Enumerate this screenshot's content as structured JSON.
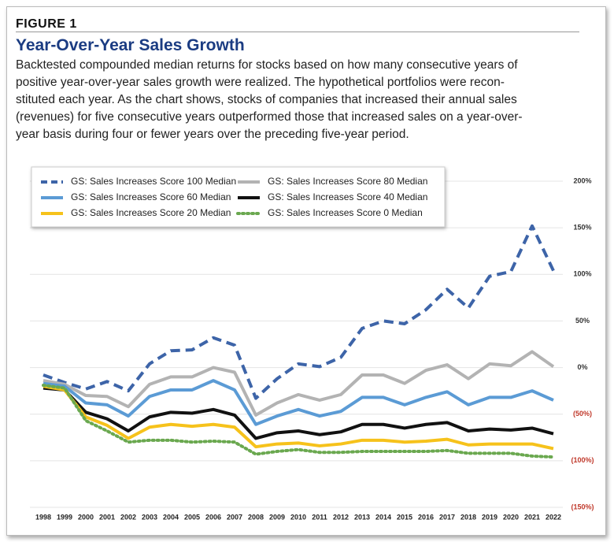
{
  "figure_label": "FIGURE 1",
  "chart_data": {
    "type": "line",
    "title": "Year-Over-Year Sales Growth",
    "description": [
      "Backtested compounded median returns for stocks based on how many consecutive years of",
      "positive year-over-year sales growth were realized. The hypothetical portfolios were recon-",
      "stituted each year. As the chart shows, stocks of companies that increased their annual sales",
      "(revenues) for five consecutive years outperformed those that increased sales on a year-over-",
      "year basis during four or fewer years over the preceding five-year period."
    ],
    "x": [
      1998,
      1999,
      2000,
      2001,
      2002,
      2003,
      2004,
      2005,
      2006,
      2007,
      2008,
      2009,
      2010,
      2011,
      2012,
      2013,
      2014,
      2015,
      2016,
      2017,
      2018,
      2019,
      2020,
      2021,
      2022
    ],
    "xlim": [
      1998,
      2022
    ],
    "xticks": [
      1998,
      1999,
      2000,
      2001,
      2002,
      2003,
      2004,
      2005,
      2006,
      2007,
      2008,
      2009,
      2010,
      2011,
      2012,
      2013,
      2014,
      2015,
      2016,
      2017,
      2018,
      2019,
      2020,
      2021,
      2022
    ],
    "ylim": [
      -150,
      200
    ],
    "yticks": [
      {
        "value": -150,
        "label": "(150%)"
      },
      {
        "value": -100,
        "label": "(100%)"
      },
      {
        "value": -50,
        "label": "(50%)"
      },
      {
        "value": 0,
        "label": "0%"
      },
      {
        "value": 50,
        "label": "50%"
      },
      {
        "value": 100,
        "label": "100%"
      },
      {
        "value": 150,
        "label": "150%"
      },
      {
        "value": 200,
        "label": "200%"
      }
    ],
    "negative_tick_color": "#c0392b",
    "grid": true,
    "legend": "top-left",
    "series": [
      {
        "name": "GS: Sales Increases Score 100 Median",
        "color": "#3d64a8",
        "style": "dashed",
        "values": [
          -8,
          -16,
          -23,
          -15,
          -25,
          4,
          18,
          19,
          32,
          24,
          -33,
          -12,
          4,
          1,
          11,
          42,
          50,
          47,
          62,
          84,
          64,
          98,
          103,
          152,
          104
        ]
      },
      {
        "name": "GS: Sales Increases Score 80 Median",
        "color": "#b3b3b3",
        "style": "solid",
        "values": [
          -14,
          -18,
          -30,
          -31,
          -42,
          -18,
          -10,
          -10,
          0,
          -5,
          -51,
          -38,
          -29,
          -35,
          -29,
          -8,
          -8,
          -17,
          -3,
          3,
          -12,
          4,
          2,
          17,
          1
        ]
      },
      {
        "name": "GS: Sales Increases Score 60 Median",
        "color": "#5b9bd5",
        "style": "solid",
        "values": [
          -17,
          -20,
          -38,
          -40,
          -52,
          -31,
          -24,
          -24,
          -14,
          -24,
          -61,
          -52,
          -45,
          -52,
          -47,
          -32,
          -32,
          -40,
          -32,
          -26,
          -40,
          -32,
          -32,
          -25,
          -35
        ]
      },
      {
        "name": "GS: Sales Increases Score 40 Median",
        "color": "#111111",
        "style": "solid",
        "values": [
          -22,
          -24,
          -48,
          -55,
          -68,
          -53,
          -48,
          -49,
          -45,
          -51,
          -76,
          -70,
          -68,
          -72,
          -69,
          -61,
          -61,
          -65,
          -61,
          -59,
          -68,
          -66,
          -67,
          -65,
          -71
        ]
      },
      {
        "name": "GS: Sales Increases Score 20 Median",
        "color": "#f6c21b",
        "style": "solid",
        "values": [
          -20,
          -24,
          -53,
          -62,
          -76,
          -64,
          -61,
          -63,
          -61,
          -64,
          -85,
          -82,
          -81,
          -84,
          -82,
          -78,
          -78,
          -80,
          -79,
          -77,
          -83,
          -82,
          -82,
          -82,
          -87
        ]
      },
      {
        "name": "GS: Sales Increases Score 0 Median",
        "color": "#6aa84f",
        "style": "dotted",
        "values": [
          -19,
          -22,
          -57,
          -68,
          -80,
          -78,
          -78,
          -80,
          -79,
          -80,
          -93,
          -90,
          -88,
          -91,
          -91,
          -90,
          -90,
          -90,
          -90,
          -89,
          -92,
          -92,
          -92,
          -95,
          -96
        ]
      }
    ]
  }
}
